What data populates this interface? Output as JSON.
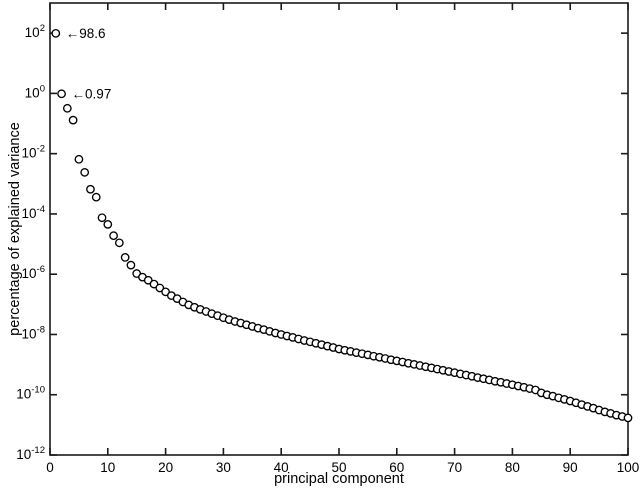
{
  "figure": {
    "background": "#ffffff",
    "axis_color": "#1a1a1a",
    "text_color": "#000000",
    "marker": {
      "shape": "open-circle",
      "stroke": "#000000",
      "fill": "#ffffff",
      "radius": 3.7,
      "stroke_width": 1.35
    }
  },
  "chart_data": {
    "type": "scatter",
    "title": "",
    "xlabel": "principal component",
    "ylabel": "percentage of explained variance",
    "xlim": [
      0,
      100
    ],
    "ylim_log10": [
      -12,
      3
    ],
    "x_ticks": [
      0,
      10,
      20,
      30,
      40,
      50,
      60,
      70,
      80,
      90,
      100
    ],
    "y_ticks": {
      "base": "10",
      "exponents": [
        2,
        0,
        -2,
        -4,
        -6,
        -8,
        -10,
        -12
      ]
    },
    "grid": false,
    "legend": null,
    "x": [
      1,
      2,
      3,
      4,
      5,
      6,
      7,
      8,
      9,
      10,
      11,
      12,
      13,
      14,
      15,
      16,
      17,
      18,
      19,
      20,
      21,
      22,
      23,
      24,
      25,
      26,
      27,
      28,
      29,
      30,
      31,
      32,
      33,
      34,
      35,
      36,
      37,
      38,
      39,
      40,
      41,
      42,
      43,
      44,
      45,
      46,
      47,
      48,
      49,
      50,
      51,
      52,
      53,
      54,
      55,
      56,
      57,
      58,
      59,
      60,
      61,
      62,
      63,
      64,
      65,
      66,
      67,
      68,
      69,
      70,
      71,
      72,
      73,
      74,
      75,
      76,
      77,
      78,
      79,
      80,
      81,
      82,
      83,
      84,
      85,
      86,
      87,
      88,
      89,
      90,
      91,
      92,
      93,
      94,
      95,
      96,
      97,
      98,
      99,
      100
    ],
    "values": [
      98.6,
      0.97,
      0.32,
      0.13,
      0.0065,
      0.0024,
      0.00066,
      0.00036,
      7.5e-05,
      4.5e-05,
      1.9e-05,
      1.1e-05,
      3.6e-06,
      2e-06,
      1.05e-06,
      8e-07,
      6.3e-07,
      4.7e-07,
      3.5e-07,
      2.6e-07,
      1.95e-07,
      1.55e-07,
      1.2e-07,
      9.6e-08,
      8e-08,
      6.8e-08,
      5.8e-08,
      4.9e-08,
      4.2e-08,
      3.6e-08,
      3.1e-08,
      2.7e-08,
      2.4e-08,
      2.1e-08,
      1.85e-08,
      1.62e-08,
      1.45e-08,
      1.27e-08,
      1.12e-08,
      1e-08,
      8.9e-09,
      8e-09,
      7.1e-09,
      6.3e-09,
      5.7e-09,
      5.1e-09,
      4.6e-09,
      4.1e-09,
      3.7e-09,
      3.3e-09,
      3e-09,
      2.75e-09,
      2.5e-09,
      2.3e-09,
      2.1e-09,
      1.9e-09,
      1.75e-09,
      1.6e-09,
      1.45e-09,
      1.33e-09,
      1.22e-09,
      1.11e-09,
      1.02e-09,
      9.3e-10,
      8.5e-10,
      7.8e-10,
      7.1e-10,
      6.5e-10,
      5.9e-10,
      5.4e-10,
      4.9e-10,
      4.5e-10,
      4.1e-10,
      3.7e-10,
      3.4e-10,
      3.1e-10,
      2.8e-10,
      2.6e-10,
      2.35e-10,
      2.15e-10,
      1.95e-10,
      1.77e-10,
      1.6e-10,
      1.44e-10,
      1.15e-10,
      1e-10,
      9e-11,
      7.9e-11,
      7e-11,
      6.2e-11,
      5.4e-11,
      4.7e-11,
      4.1e-11,
      3.6e-11,
      3.1e-11,
      2.7e-11,
      2.4e-11,
      2.1e-11,
      1.9e-11,
      1.7e-11
    ],
    "annotations": [
      {
        "text": "←98.6",
        "x": 1,
        "value": 98.6
      },
      {
        "text": "←0.97",
        "x": 2,
        "value": 0.97
      }
    ]
  }
}
